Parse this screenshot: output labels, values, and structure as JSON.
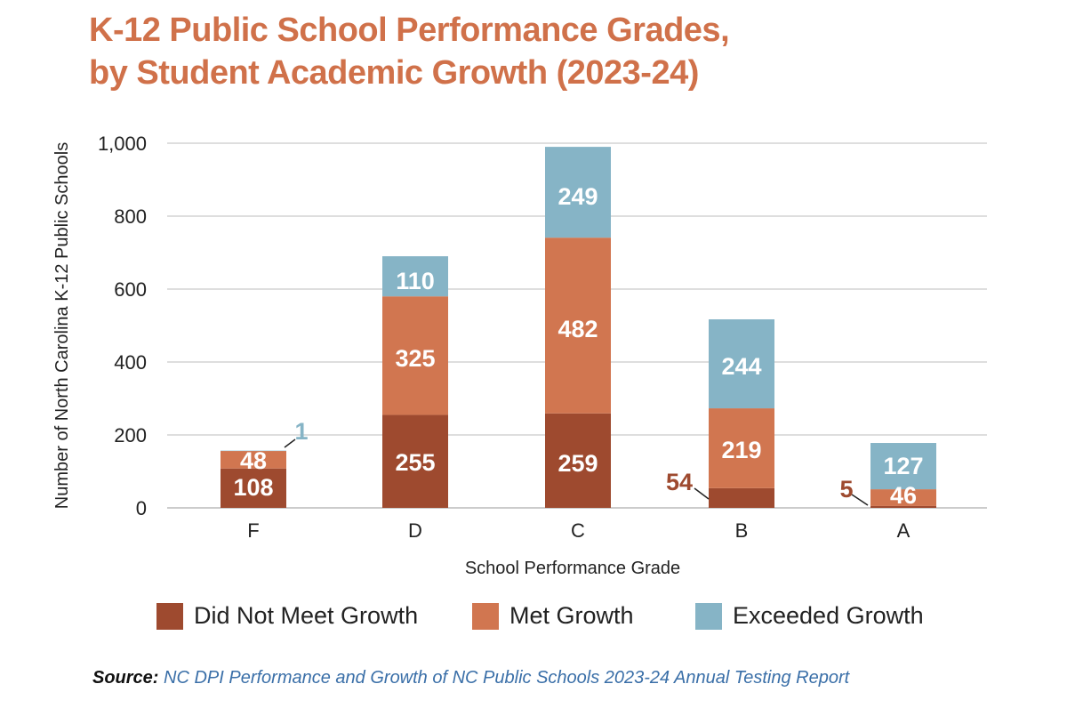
{
  "title_line1": "K-12 Public School Performance Grades,",
  "title_line2": "by Student Academic Growth (2023-24)",
  "source": {
    "label": "Source:",
    "text": "NC DPI Performance and Growth of NC Public Schools 2023-24 Annual Testing Report"
  },
  "colors": {
    "did_not_meet": "#9e4a2f",
    "met": "#d17650",
    "exceeded": "#86b4c6",
    "title": "#d0714a"
  },
  "chart_data": {
    "type": "bar",
    "stacked": true,
    "categories": [
      "F",
      "D",
      "C",
      "B",
      "A"
    ],
    "series": [
      {
        "name": "Did Not Meet Growth",
        "values": [
          108,
          255,
          259,
          54,
          5
        ]
      },
      {
        "name": "Met Growth",
        "values": [
          48,
          325,
          482,
          219,
          46
        ]
      },
      {
        "name": "Exceeded Growth",
        "values": [
          1,
          110,
          249,
          244,
          127
        ]
      }
    ],
    "xlabel": "School Performance Grade",
    "ylabel": "Number of North Carolina K-12 Public Schools",
    "ylim": [
      0,
      1000
    ],
    "yticks": [
      0,
      200,
      400,
      600,
      800,
      1000
    ],
    "ytick_labels": [
      "0",
      "200",
      "400",
      "600",
      "800",
      "1,000"
    ],
    "grid": true,
    "legend": "bottom"
  }
}
